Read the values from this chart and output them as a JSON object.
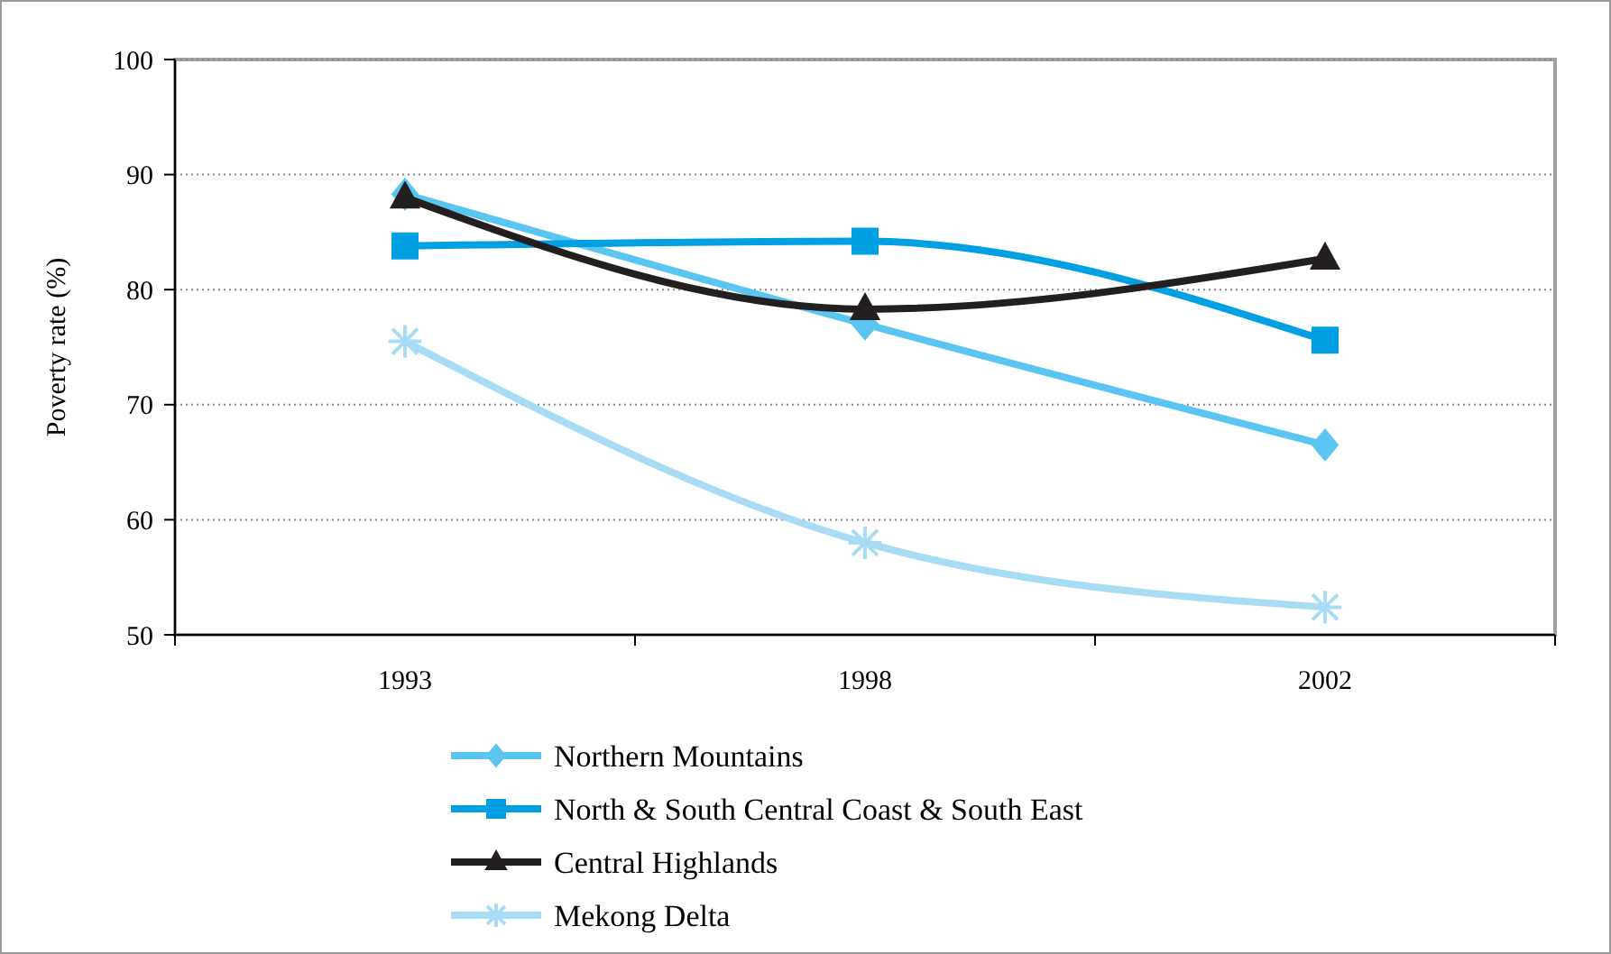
{
  "chart_data": {
    "type": "line",
    "ylabel": "Poverty rate (%)",
    "categories": [
      "1993",
      "1998",
      "2002"
    ],
    "ylim": [
      50,
      100
    ],
    "yticks": [
      50,
      60,
      70,
      80,
      90,
      100
    ],
    "grid": "y",
    "legend": "bottom",
    "line_style": "solid",
    "series": [
      {
        "name": "Northern Mountains",
        "color": "#5bc5f2",
        "marker": "diamond",
        "values": [
          88.3,
          77,
          66.5
        ]
      },
      {
        "name": "North & South Central Coast & South East",
        "color": "#00a0e3",
        "marker": "square",
        "values": [
          83.8,
          84.2,
          75.6
        ]
      },
      {
        "name": "Central Highlands",
        "color": "#231f20",
        "marker": "triangle",
        "values": [
          88,
          78.3,
          82.7
        ]
      },
      {
        "name": "Mekong Delta",
        "color": "#a8dcf5",
        "marker": "cross",
        "values": [
          75.5,
          58,
          52.4
        ]
      }
    ]
  }
}
